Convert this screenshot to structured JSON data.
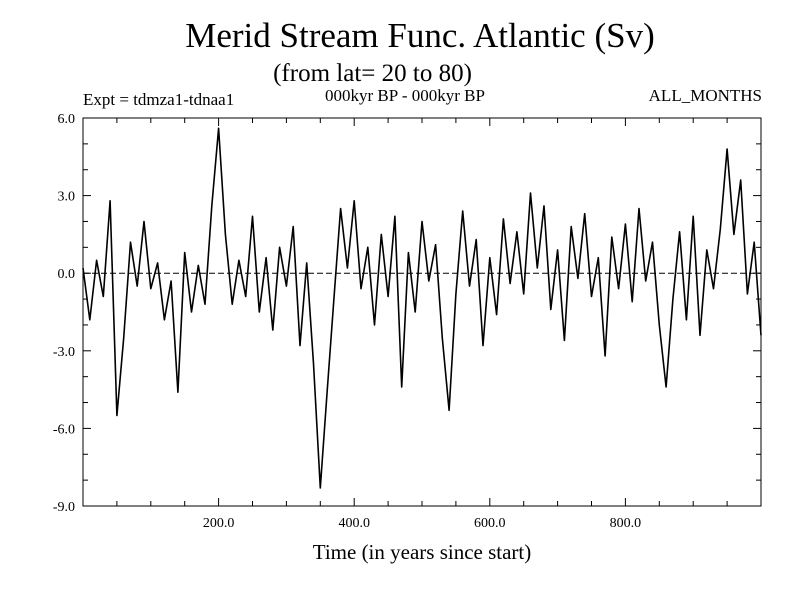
{
  "chart_data": {
    "type": "line",
    "title": "Merid Stream Func. Atlantic (Sv)",
    "subtitle": "(from lat= 20 to 80)",
    "annotations": {
      "left": "Expt = tdmza1-tdnaa1",
      "center": "000kyr BP - 000kyr BP",
      "right": "ALL_MONTHS"
    },
    "xlabel": "Time (in years since start)",
    "ylabel": "",
    "xlim": [
      0,
      1000
    ],
    "ylim": [
      -9.0,
      6.0
    ],
    "xticks": [
      200.0,
      400.0,
      600.0,
      800.0
    ],
    "xtick_labels": [
      "200.0",
      "400.0",
      "600.0",
      "800.0"
    ],
    "yticks": [
      -9.0,
      -6.0,
      -3.0,
      0.0,
      3.0,
      6.0
    ],
    "ytick_labels": [
      "-9.0",
      "-6.0",
      "-3.0",
      "0.0",
      "3.0",
      "6.0"
    ],
    "zero_line": true,
    "grid": false,
    "series": [
      {
        "x": [
          0,
          10,
          20,
          30,
          40,
          50,
          60,
          70,
          80,
          90,
          100,
          110,
          120,
          130,
          140,
          150,
          160,
          170,
          180,
          190,
          200,
          210,
          220,
          230,
          240,
          250,
          260,
          270,
          280,
          290,
          300,
          310,
          320,
          330,
          340,
          350,
          360,
          370,
          380,
          390,
          400,
          410,
          420,
          430,
          440,
          450,
          460,
          470,
          480,
          490,
          500,
          510,
          520,
          530,
          540,
          550,
          560,
          570,
          580,
          590,
          600,
          610,
          620,
          630,
          640,
          650,
          660,
          670,
          680,
          690,
          700,
          710,
          720,
          730,
          740,
          750,
          760,
          770,
          780,
          790,
          800,
          810,
          820,
          830,
          840,
          850,
          860,
          870,
          880,
          890,
          900,
          910,
          920,
          930,
          940,
          950,
          960,
          970,
          980,
          990,
          1000
        ],
        "values": [
          0.2,
          -1.8,
          0.5,
          -0.9,
          2.8,
          -5.5,
          -2.5,
          1.2,
          -0.5,
          2.0,
          -0.6,
          0.4,
          -1.8,
          -0.3,
          -4.6,
          0.8,
          -1.5,
          0.3,
          -1.2,
          2.6,
          5.6,
          1.5,
          -1.2,
          0.5,
          -0.9,
          2.2,
          -1.5,
          0.6,
          -2.2,
          1.0,
          -0.5,
          1.8,
          -2.8,
          0.4,
          -3.5,
          -8.3,
          -4.6,
          -1.0,
          2.5,
          0.2,
          2.8,
          -0.6,
          1.0,
          -2.0,
          1.5,
          -0.9,
          2.2,
          -4.4,
          0.8,
          -1.5,
          2.0,
          -0.3,
          1.1,
          -2.5,
          -5.3,
          -0.8,
          2.4,
          -0.5,
          1.3,
          -2.8,
          0.6,
          -1.6,
          2.1,
          -0.4,
          1.6,
          -0.8,
          3.1,
          0.2,
          2.6,
          -1.4,
          0.9,
          -2.6,
          1.8,
          -0.2,
          2.3,
          -0.9,
          0.6,
          -3.2,
          1.4,
          -0.6,
          1.9,
          -1.1,
          2.5,
          -0.3,
          1.2,
          -2.0,
          -4.4,
          -1.0,
          1.6,
          -1.8,
          2.2,
          -2.4,
          0.9,
          -0.6,
          1.7,
          4.8,
          1.5,
          3.6,
          -0.8,
          1.2,
          -2.4
        ]
      }
    ]
  }
}
